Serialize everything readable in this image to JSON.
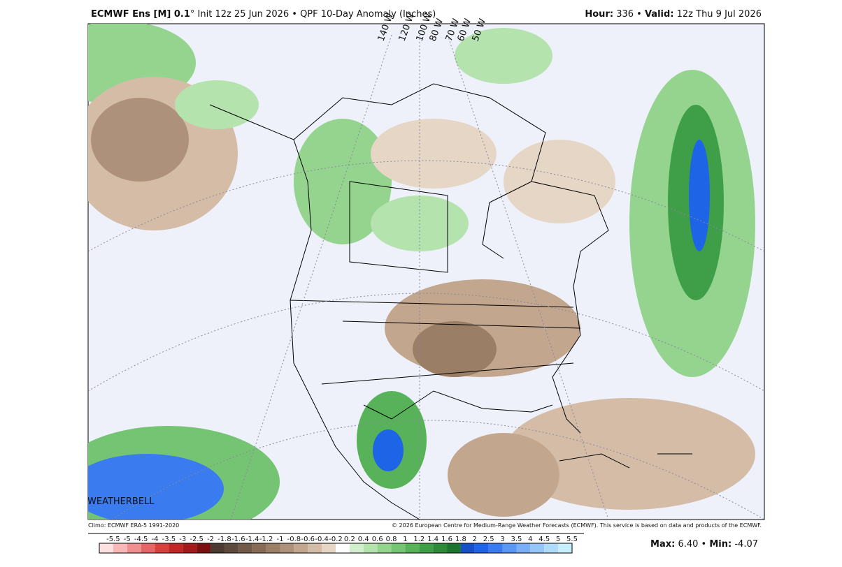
{
  "header": {
    "model": "ECMWF Ens [M] 0.1",
    "init": "° Init 12z 25 Jun 2026 • QPF 10-Day Anomaly (Inches)",
    "hour_label": "Hour:",
    "hour": " 336 • ",
    "valid_label": "Valid:",
    "valid": " 12z Thu 9 Jul 2026"
  },
  "map": {
    "longitudes": [
      "140 W",
      "120 W",
      "100 W",
      "80 W",
      "70 W",
      "60 W",
      "50 W"
    ]
  },
  "footer": {
    "climo": "Climo: ECMWF ERA-5 1991-2020",
    "copyright": "© 2026 European Centre for Medium-Range Weather Forecasts (ECMWF). This service is based on data and products of the ECMWF.",
    "max_label": "Max:",
    "max": " 6.40 • ",
    "min_label": "Min:",
    "min": " -4.07"
  },
  "legend": {
    "labels": [
      -5.5,
      -5,
      -4.5,
      -4,
      -3.5,
      -3,
      -2.5,
      -2,
      -1.8,
      -1.6,
      -1.4,
      -1.2,
      -1,
      -0.8,
      -0.6,
      -0.4,
      -0.2,
      0.2,
      0.4,
      0.6,
      0.8,
      1,
      1.2,
      1.4,
      1.6,
      1.8,
      2,
      2.5,
      3,
      3.5,
      4,
      4.5,
      5,
      5.5
    ],
    "colors": [
      "#fde0e0",
      "#f9b8b8",
      "#f08f8f",
      "#e56666",
      "#d84040",
      "#c02626",
      "#a31a1a",
      "#7a1010",
      "#4a3b32",
      "#5e4a3c",
      "#735a48",
      "#876b56",
      "#9b7e66",
      "#ae917a",
      "#c2a68e",
      "#d4bca6",
      "#e6d6c6",
      "#ffffff",
      "#d2efcd",
      "#b4e3ae",
      "#94d48f",
      "#75c473",
      "#57b25a",
      "#3f9e48",
      "#2c8a3a",
      "#1c7430",
      "#1650c8",
      "#1e64e6",
      "#3a7cf0",
      "#5a96f4",
      "#7aaef6",
      "#96c6f8",
      "#b0dcfa",
      "#c8eefc"
    ]
  }
}
